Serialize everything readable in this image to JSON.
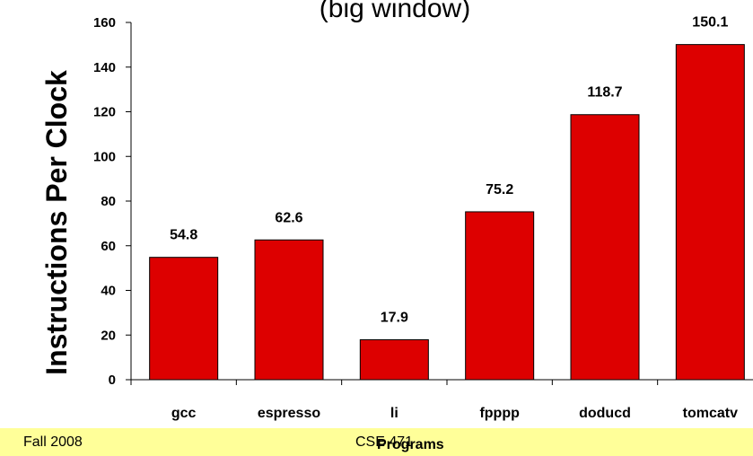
{
  "chart_data": {
    "type": "bar",
    "title": "(big window)",
    "ylabel": "Instructions Per Clock",
    "xlabel": "Programs",
    "categories": [
      "gcc",
      "espresso",
      "li",
      "fpppp",
      "doducd",
      "tomcatv"
    ],
    "values": [
      54.8,
      62.6,
      17.9,
      75.2,
      118.7,
      150.1
    ],
    "value_labels": [
      "54.8",
      "62.6",
      "17.9",
      "75.2",
      "118.7",
      "150.1"
    ],
    "ylim": [
      0,
      160
    ],
    "yticks": [
      0,
      20,
      40,
      60,
      80,
      100,
      120,
      140,
      160
    ],
    "bar_color": "#dd0000",
    "grid": false,
    "legend": "none"
  },
  "footer": {
    "left": "Fall 2008",
    "center": "CSE 471"
  }
}
